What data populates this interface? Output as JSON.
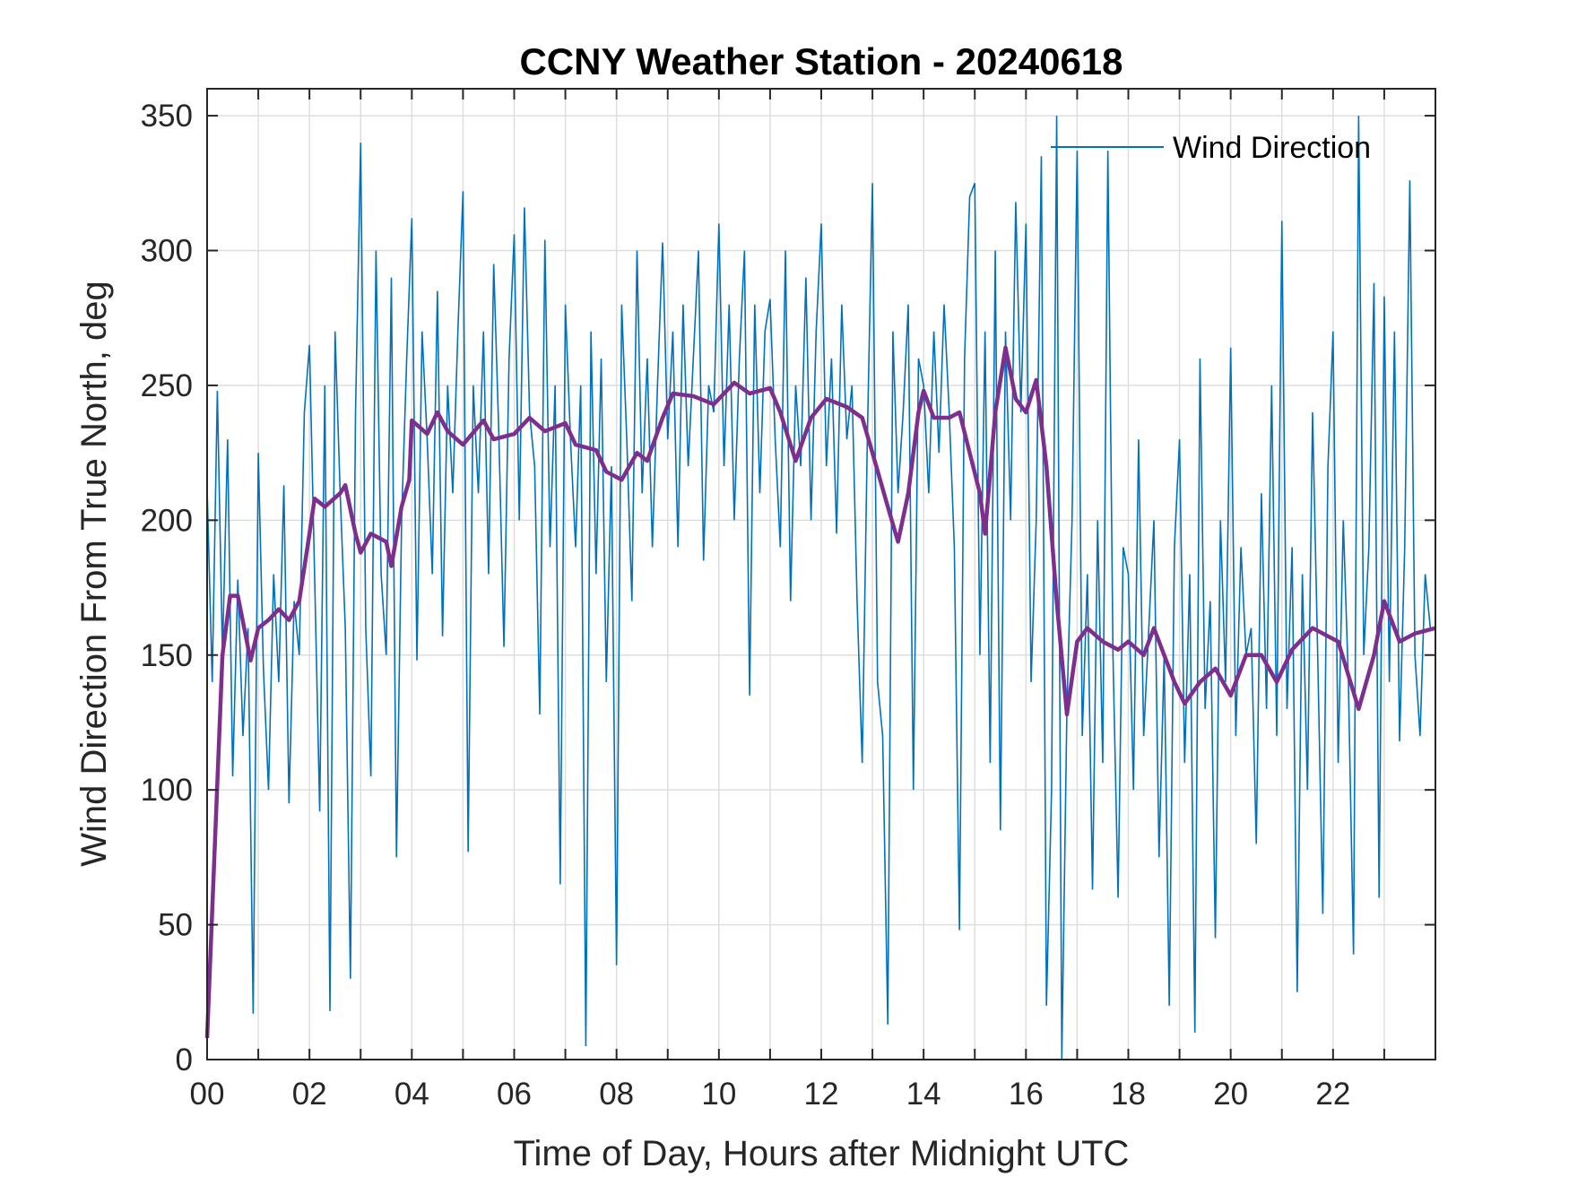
{
  "chart_data": {
    "type": "line",
    "title": "CCNY Weather Station - 20240618",
    "xlabel": "Time of Day, Hours after Midnight UTC",
    "ylabel": "Wind Direction From True North, deg",
    "xlim": [
      0,
      24
    ],
    "ylim": [
      0,
      360
    ],
    "grid": true,
    "x_tick_values": [
      0,
      2,
      4,
      6,
      8,
      10,
      12,
      14,
      16,
      18,
      20,
      22
    ],
    "x_tick_labels": [
      "00",
      "02",
      "04",
      "06",
      "08",
      "10",
      "12",
      "14",
      "16",
      "18",
      "20",
      "22"
    ],
    "y_tick_values": [
      0,
      50,
      100,
      150,
      200,
      250,
      300,
      350
    ],
    "y_tick_labels": [
      "0",
      "50",
      "100",
      "150",
      "200",
      "250",
      "300",
      "350"
    ],
    "legend": {
      "position": "top-right",
      "entries": [
        "Wind Direction"
      ]
    },
    "colors": {
      "raw": "#0072BD",
      "smoothed": "#7E2F8E"
    },
    "series": [
      {
        "name": "Wind Direction",
        "x_step_hours": 0.1,
        "values": [
          212,
          140,
          248,
          150,
          230,
          105,
          178,
          120,
          160,
          17,
          225,
          145,
          100,
          180,
          140,
          213,
          95,
          170,
          150,
          240,
          265,
          180,
          92,
          250,
          18,
          270,
          210,
          160,
          30,
          240,
          340,
          160,
          105,
          300,
          180,
          150,
          290,
          75,
          200,
          260,
          312,
          148,
          270,
          230,
          180,
          285,
          157,
          250,
          210,
          270,
          322,
          77,
          250,
          210,
          270,
          180,
          295,
          232,
          153,
          260,
          306,
          200,
          316,
          240,
          220,
          128,
          304,
          190,
          250,
          65,
          280,
          230,
          190,
          250,
          5,
          270,
          180,
          260,
          140,
          220,
          35,
          280,
          230,
          170,
          300,
          210,
          260,
          190,
          250,
          303,
          230,
          270,
          190,
          280,
          220,
          260,
          300,
          185,
          250,
          240,
          310,
          220,
          280,
          200,
          260,
          300,
          135,
          280,
          210,
          270,
          282,
          230,
          190,
          300,
          170,
          250,
          220,
          290,
          200,
          270,
          310,
          220,
          260,
          195,
          280,
          230,
          250,
          170,
          110,
          230,
          325,
          140,
          120,
          13,
          270,
          210,
          240,
          280,
          100,
          260,
          250,
          210,
          270,
          225,
          280,
          240,
          190,
          48,
          260,
          320,
          325,
          150,
          270,
          110,
          300,
          85,
          270,
          200,
          318,
          240,
          310,
          140,
          200,
          335,
          20,
          100,
          350,
          0,
          130,
          200,
          337,
          120,
          180,
          63,
          200,
          110,
          337,
          150,
          60,
          190,
          180,
          100,
          230,
          120,
          160,
          200,
          75,
          150,
          20,
          190,
          230,
          110,
          180,
          10,
          260,
          130,
          170,
          45,
          200,
          140,
          264,
          120,
          190,
          150,
          160,
          80,
          210,
          130,
          250,
          120,
          311,
          130,
          190,
          25,
          180,
          100,
          240,
          150,
          54,
          220,
          270,
          110,
          200,
          140,
          39,
          350,
          150,
          190,
          288,
          60,
          283,
          140,
          270,
          118,
          190,
          326,
          150,
          120,
          180,
          160
        ]
      },
      {
        "name": "Moving average (unlabeled)",
        "points": [
          [
            0,
            8
          ],
          [
            0.3,
            150
          ],
          [
            0.45,
            172
          ],
          [
            0.6,
            172
          ],
          [
            0.85,
            148
          ],
          [
            1.0,
            160
          ],
          [
            1.2,
            163
          ],
          [
            1.4,
            167
          ],
          [
            1.6,
            163
          ],
          [
            1.8,
            170
          ],
          [
            2.0,
            195
          ],
          [
            2.1,
            208
          ],
          [
            2.3,
            205
          ],
          [
            2.6,
            210
          ],
          [
            2.7,
            213
          ],
          [
            2.9,
            195
          ],
          [
            3.0,
            188
          ],
          [
            3.2,
            195
          ],
          [
            3.5,
            192
          ],
          [
            3.6,
            183
          ],
          [
            3.8,
            205
          ],
          [
            3.95,
            215
          ],
          [
            4.0,
            237
          ],
          [
            4.3,
            232
          ],
          [
            4.5,
            240
          ],
          [
            4.7,
            233
          ],
          [
            5.0,
            228
          ],
          [
            5.4,
            237
          ],
          [
            5.6,
            230
          ],
          [
            6.0,
            232
          ],
          [
            6.3,
            238
          ],
          [
            6.6,
            233
          ],
          [
            7.0,
            236
          ],
          [
            7.2,
            228
          ],
          [
            7.6,
            226
          ],
          [
            7.8,
            218
          ],
          [
            8.1,
            215
          ],
          [
            8.4,
            225
          ],
          [
            8.6,
            222
          ],
          [
            8.9,
            238
          ],
          [
            9.1,
            247
          ],
          [
            9.5,
            246
          ],
          [
            9.9,
            243
          ],
          [
            10.3,
            251
          ],
          [
            10.6,
            247
          ],
          [
            11.0,
            249
          ],
          [
            11.2,
            240
          ],
          [
            11.5,
            222
          ],
          [
            11.8,
            238
          ],
          [
            12.1,
            245
          ],
          [
            12.5,
            242
          ],
          [
            12.8,
            238
          ],
          [
            13.0,
            225
          ],
          [
            13.3,
            205
          ],
          [
            13.5,
            192
          ],
          [
            13.7,
            210
          ],
          [
            13.9,
            240
          ],
          [
            14.0,
            248
          ],
          [
            14.2,
            238
          ],
          [
            14.5,
            238
          ],
          [
            14.7,
            240
          ],
          [
            14.9,
            225
          ],
          [
            15.1,
            210
          ],
          [
            15.2,
            195
          ],
          [
            15.4,
            240
          ],
          [
            15.6,
            264
          ],
          [
            15.8,
            245
          ],
          [
            16.0,
            240
          ],
          [
            16.2,
            252
          ],
          [
            16.4,
            220
          ],
          [
            16.6,
            170
          ],
          [
            16.8,
            128
          ],
          [
            17.0,
            155
          ],
          [
            17.2,
            160
          ],
          [
            17.5,
            155
          ],
          [
            17.8,
            152
          ],
          [
            18.0,
            155
          ],
          [
            18.3,
            150
          ],
          [
            18.5,
            160
          ],
          [
            18.7,
            150
          ],
          [
            18.9,
            140
          ],
          [
            19.1,
            132
          ],
          [
            19.4,
            140
          ],
          [
            19.7,
            145
          ],
          [
            20.0,
            135
          ],
          [
            20.3,
            150
          ],
          [
            20.6,
            150
          ],
          [
            20.9,
            140
          ],
          [
            21.2,
            152
          ],
          [
            21.6,
            160
          ],
          [
            21.8,
            158
          ],
          [
            22.1,
            155
          ],
          [
            22.5,
            130
          ],
          [
            22.8,
            150
          ],
          [
            23.0,
            170
          ],
          [
            23.3,
            155
          ],
          [
            23.6,
            158
          ],
          [
            24,
            160
          ]
        ]
      }
    ]
  }
}
